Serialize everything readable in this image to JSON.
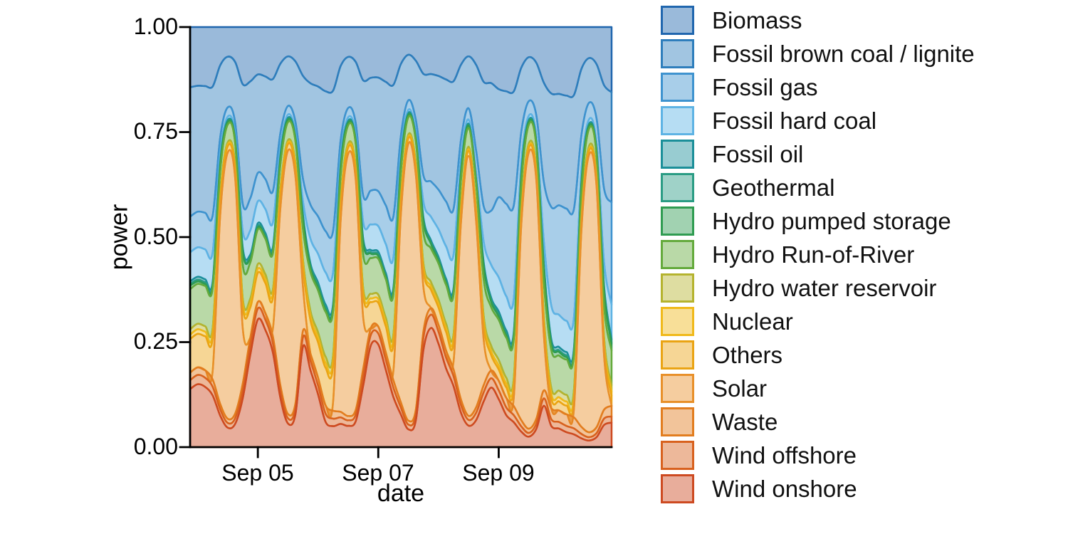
{
  "axes": {
    "y_title": "power",
    "x_title": "date",
    "y_ticks": [
      "1.00",
      "0.75",
      "0.50",
      "0.25",
      "0.00"
    ],
    "x_ticks": [
      "Sep 05",
      "Sep 07",
      "Sep 09"
    ]
  },
  "chart_data": {
    "type": "area",
    "stacked": true,
    "normalized": true,
    "title": "",
    "xlabel": "date",
    "ylabel": "power",
    "ylim": [
      0,
      1
    ],
    "grid": false,
    "legend_position": "right",
    "x_start": "Sep 03 21:00",
    "x_step_hours": 3,
    "x_range_hours": [
      0,
      168
    ],
    "x_tick_hours": [
      27,
      75,
      123
    ],
    "x_tick_labels": [
      "Sep 05",
      "Sep 07",
      "Sep 09"
    ],
    "y_tick_values": [
      1.0,
      0.75,
      0.5,
      0.25,
      0.0
    ],
    "y_tick_labels": [
      "1.00",
      "0.75",
      "0.50",
      "0.25",
      "0.00"
    ],
    "fill_alpha": 0.45,
    "series": [
      {
        "id": "biomass",
        "name": "Biomass",
        "color": "#2066ae",
        "values": [
          0.135,
          0.14,
          0.142,
          0.138,
          0.085,
          0.07,
          0.075,
          0.105,
          0.135,
          0.13,
          0.135,
          0.132,
          0.082,
          0.068,
          0.073,
          0.102,
          0.132,
          0.135,
          0.14,
          0.136,
          0.084,
          0.07,
          0.074,
          0.104,
          0.135,
          0.138,
          0.142,
          0.138,
          0.085,
          0.07,
          0.075,
          0.106,
          0.14,
          0.142,
          0.146,
          0.142,
          0.088,
          0.072,
          0.077,
          0.108,
          0.145,
          0.155,
          0.16,
          0.155,
          0.092,
          0.072,
          0.078,
          0.112,
          0.158,
          0.162,
          0.165,
          0.16,
          0.095,
          0.075,
          0.082,
          0.118,
          0.16
        ]
      },
      {
        "id": "fossil-brown-coal-lignite",
        "name": "Fossil brown coal / lignite",
        "color": "#2e7ebc",
        "values": [
          0.29,
          0.3,
          0.305,
          0.3,
          0.16,
          0.12,
          0.13,
          0.22,
          0.29,
          0.27,
          0.28,
          0.285,
          0.155,
          0.115,
          0.128,
          0.215,
          0.285,
          0.295,
          0.305,
          0.3,
          0.16,
          0.12,
          0.13,
          0.225,
          0.3,
          0.31,
          0.32,
          0.315,
          0.165,
          0.115,
          0.132,
          0.23,
          0.32,
          0.33,
          0.34,
          0.335,
          0.175,
          0.128,
          0.175,
          0.245,
          0.33,
          0.27,
          0.28,
          0.275,
          0.145,
          0.105,
          0.115,
          0.2,
          0.27,
          0.27,
          0.272,
          0.268,
          0.15,
          0.108,
          0.12,
          0.21,
          0.27
        ]
      },
      {
        "id": "fossil-gas",
        "name": "Fossil gas",
        "color": "#3e93cf",
        "values": [
          0.08,
          0.085,
          0.088,
          0.085,
          0.035,
          0.022,
          0.025,
          0.05,
          0.08,
          0.078,
          0.082,
          0.08,
          0.032,
          0.02,
          0.023,
          0.048,
          0.08,
          0.085,
          0.09,
          0.088,
          0.034,
          0.022,
          0.025,
          0.052,
          0.09,
          0.095,
          0.1,
          0.098,
          0.038,
          0.024,
          0.028,
          0.06,
          0.105,
          0.115,
          0.125,
          0.12,
          0.045,
          0.028,
          0.045,
          0.07,
          0.14,
          0.2,
          0.23,
          0.225,
          0.07,
          0.035,
          0.045,
          0.12,
          0.235,
          0.265,
          0.27,
          0.255,
          0.08,
          0.04,
          0.055,
          0.15,
          0.25
        ]
      },
      {
        "id": "fossil-hard-coal",
        "name": "Fossil hard coal",
        "color": "#5eb3e4",
        "values": [
          0.065,
          0.07,
          0.072,
          0.068,
          0.02,
          0.008,
          0.01,
          0.03,
          0.06,
          0.06,
          0.065,
          0.062,
          0.018,
          0.007,
          0.009,
          0.028,
          0.058,
          0.065,
          0.07,
          0.068,
          0.02,
          0.008,
          0.01,
          0.032,
          0.068,
          0.07,
          0.075,
          0.072,
          0.022,
          0.008,
          0.01,
          0.035,
          0.07,
          0.08,
          0.09,
          0.088,
          0.026,
          0.01,
          0.012,
          0.04,
          0.085,
          0.085,
          0.085,
          0.08,
          0.026,
          0.01,
          0.013,
          0.045,
          0.08,
          0.078,
          0.075,
          0.072,
          0.026,
          0.011,
          0.014,
          0.048,
          0.085
        ]
      },
      {
        "id": "fossil-oil",
        "name": "Fossil oil",
        "color": "#1b8f99",
        "values": [
          0.006,
          0.007,
          0.007,
          0.006,
          0.004,
          0.003,
          0.003,
          0.005,
          0.006,
          0.007,
          0.007,
          0.006,
          0.004,
          0.003,
          0.003,
          0.005,
          0.006,
          0.007,
          0.007,
          0.006,
          0.004,
          0.003,
          0.003,
          0.005,
          0.006,
          0.007,
          0.007,
          0.006,
          0.004,
          0.003,
          0.003,
          0.005,
          0.007,
          0.007,
          0.007,
          0.007,
          0.004,
          0.003,
          0.003,
          0.005,
          0.007,
          0.008,
          0.008,
          0.007,
          0.004,
          0.003,
          0.003,
          0.005,
          0.007,
          0.008,
          0.008,
          0.007,
          0.005,
          0.003,
          0.004,
          0.006,
          0.008
        ]
      },
      {
        "id": "geothermal",
        "name": "Geothermal",
        "color": "#2a9c84",
        "values": [
          0.0035,
          0.004,
          0.004,
          0.0035,
          0.002,
          0.0015,
          0.0016,
          0.0025,
          0.0035,
          0.004,
          0.004,
          0.0035,
          0.002,
          0.0015,
          0.0016,
          0.0025,
          0.0035,
          0.004,
          0.004,
          0.0035,
          0.002,
          0.0015,
          0.0016,
          0.0025,
          0.0035,
          0.004,
          0.004,
          0.0035,
          0.002,
          0.0015,
          0.0016,
          0.0025,
          0.0035,
          0.004,
          0.004,
          0.0035,
          0.002,
          0.0015,
          0.0016,
          0.0025,
          0.0035,
          0.004,
          0.004,
          0.0035,
          0.002,
          0.0015,
          0.0016,
          0.0025,
          0.0035,
          0.004,
          0.004,
          0.0035,
          0.002,
          0.0015,
          0.0016,
          0.0025,
          0.0035
        ]
      },
      {
        "id": "hydro-pumped-storage",
        "name": "Hydro pumped storage",
        "color": "#2f9c51",
        "values": [
          0.008,
          0.006,
          0.005,
          0.006,
          0.014,
          0.006,
          0.005,
          0.024,
          0.01,
          0.006,
          0.005,
          0.006,
          0.014,
          0.006,
          0.005,
          0.022,
          0.01,
          0.007,
          0.005,
          0.006,
          0.015,
          0.006,
          0.005,
          0.024,
          0.012,
          0.008,
          0.005,
          0.006,
          0.016,
          0.006,
          0.005,
          0.026,
          0.014,
          0.008,
          0.006,
          0.006,
          0.016,
          0.006,
          0.005,
          0.026,
          0.014,
          0.009,
          0.006,
          0.006,
          0.018,
          0.007,
          0.006,
          0.028,
          0.015,
          0.009,
          0.006,
          0.006,
          0.018,
          0.007,
          0.006,
          0.03,
          0.016
        ]
      },
      {
        "id": "hydro-run-of-river",
        "name": "Hydro Run-of-River",
        "color": "#64aa3c",
        "values": [
          0.09,
          0.095,
          0.097,
          0.092,
          0.055,
          0.042,
          0.046,
          0.062,
          0.09,
          0.095,
          0.097,
          0.092,
          0.055,
          0.042,
          0.046,
          0.064,
          0.092,
          0.095,
          0.098,
          0.094,
          0.056,
          0.043,
          0.047,
          0.065,
          0.095,
          0.098,
          0.1,
          0.096,
          0.058,
          0.044,
          0.048,
          0.07,
          0.1,
          0.105,
          0.108,
          0.104,
          0.062,
          0.046,
          0.05,
          0.072,
          0.1,
          0.1,
          0.1,
          0.095,
          0.06,
          0.045,
          0.05,
          0.07,
          0.09,
          0.085,
          0.085,
          0.082,
          0.055,
          0.042,
          0.046,
          0.065,
          0.085
        ]
      },
      {
        "id": "hydro-water-reservoir",
        "name": "Hydro water reservoir",
        "color": "#b5b32e",
        "values": [
          0.012,
          0.013,
          0.013,
          0.012,
          0.007,
          0.005,
          0.006,
          0.008,
          0.012,
          0.013,
          0.013,
          0.012,
          0.007,
          0.005,
          0.006,
          0.008,
          0.012,
          0.012,
          0.013,
          0.012,
          0.007,
          0.005,
          0.006,
          0.008,
          0.012,
          0.012,
          0.012,
          0.012,
          0.007,
          0.005,
          0.006,
          0.009,
          0.013,
          0.013,
          0.013,
          0.012,
          0.008,
          0.006,
          0.007,
          0.01,
          0.014,
          0.014,
          0.014,
          0.013,
          0.009,
          0.006,
          0.007,
          0.01,
          0.014,
          0.016,
          0.016,
          0.015,
          0.01,
          0.007,
          0.008,
          0.012,
          0.016
        ]
      },
      {
        "id": "nuclear",
        "name": "Nuclear",
        "color": "#f0b91a",
        "values": [
          0.01,
          0.011,
          0.011,
          0.01,
          0.006,
          0.004,
          0.005,
          0.007,
          0.01,
          0.011,
          0.011,
          0.01,
          0.006,
          0.004,
          0.005,
          0.007,
          0.01,
          0.011,
          0.011,
          0.01,
          0.006,
          0.004,
          0.005,
          0.007,
          0.01,
          0.01,
          0.01,
          0.01,
          0.006,
          0.004,
          0.005,
          0.007,
          0.01,
          0.01,
          0.01,
          0.01,
          0.006,
          0.004,
          0.005,
          0.007,
          0.01,
          0.01,
          0.01,
          0.009,
          0.006,
          0.004,
          0.005,
          0.007,
          0.01,
          0.01,
          0.01,
          0.009,
          0.006,
          0.004,
          0.005,
          0.007,
          0.01
        ]
      },
      {
        "id": "others",
        "name": "Others",
        "color": "#eaa414",
        "values": [
          0.075,
          0.08,
          0.082,
          0.078,
          0.03,
          0.015,
          0.018,
          0.04,
          0.075,
          0.08,
          0.082,
          0.078,
          0.03,
          0.015,
          0.018,
          0.042,
          0.078,
          0.08,
          0.082,
          0.078,
          0.03,
          0.015,
          0.018,
          0.042,
          0.07,
          0.065,
          0.068,
          0.065,
          0.028,
          0.014,
          0.016,
          0.038,
          0.055,
          0.05,
          0.052,
          0.05,
          0.024,
          0.013,
          0.015,
          0.03,
          0.04,
          0.028,
          0.026,
          0.025,
          0.016,
          0.011,
          0.012,
          0.02,
          0.024,
          0.022,
          0.021,
          0.021,
          0.014,
          0.01,
          0.011,
          0.018,
          0.025
        ]
      },
      {
        "id": "solar",
        "name": "Solar",
        "color": "#e8902a",
        "values": [
          0,
          0,
          0,
          0.02,
          0.42,
          0.63,
          0.5,
          0.1,
          0,
          0,
          0,
          0.02,
          0.4,
          0.61,
          0.48,
          0.09,
          0,
          0,
          0,
          0.02,
          0.41,
          0.615,
          0.49,
          0.1,
          0,
          0,
          0,
          0.02,
          0.43,
          0.7,
          0.52,
          0.1,
          0,
          0,
          0,
          0.02,
          0.42,
          0.64,
          0.38,
          0.09,
          0,
          0,
          0,
          0.02,
          0.44,
          0.66,
          0.52,
          0.11,
          0,
          0,
          0,
          0.02,
          0.45,
          0.67,
          0.53,
          0.11,
          0
        ]
      },
      {
        "id": "waste",
        "name": "Waste",
        "color": "#e27d1f",
        "values": [
          0.017,
          0.018,
          0.018,
          0.017,
          0.012,
          0.01,
          0.01,
          0.012,
          0.017,
          0.018,
          0.018,
          0.017,
          0.012,
          0.01,
          0.01,
          0.013,
          0.017,
          0.018,
          0.018,
          0.017,
          0.012,
          0.01,
          0.01,
          0.013,
          0.018,
          0.019,
          0.019,
          0.018,
          0.012,
          0.01,
          0.01,
          0.014,
          0.019,
          0.02,
          0.02,
          0.018,
          0.013,
          0.01,
          0.011,
          0.014,
          0.02,
          0.024,
          0.024,
          0.022,
          0.014,
          0.01,
          0.011,
          0.016,
          0.026,
          0.028,
          0.028,
          0.026,
          0.016,
          0.012,
          0.013,
          0.018,
          0.026
        ]
      },
      {
        "id": "wind-offshore",
        "name": "Wind offshore",
        "color": "#d8611e",
        "values": [
          0.02,
          0.022,
          0.022,
          0.02,
          0.014,
          0.011,
          0.012,
          0.015,
          0.025,
          0.03,
          0.028,
          0.024,
          0.016,
          0.012,
          0.013,
          0.02,
          0.022,
          0.02,
          0.018,
          0.016,
          0.014,
          0.013,
          0.014,
          0.02,
          0.028,
          0.03,
          0.026,
          0.022,
          0.016,
          0.012,
          0.014,
          0.028,
          0.04,
          0.035,
          0.03,
          0.026,
          0.018,
          0.014,
          0.015,
          0.018,
          0.024,
          0.022,
          0.019,
          0.017,
          0.012,
          0.009,
          0.011,
          0.015,
          0.016,
          0.016,
          0.015,
          0.014,
          0.01,
          0.008,
          0.009,
          0.013,
          0.015
        ]
      },
      {
        "id": "wind-onshore",
        "name": "Wind onshore",
        "color": "#cd4a21",
        "values": [
          0.13,
          0.15,
          0.145,
          0.12,
          0.07,
          0.046,
          0.05,
          0.09,
          0.23,
          0.35,
          0.32,
          0.24,
          0.11,
          0.055,
          0.07,
          0.21,
          0.18,
          0.12,
          0.055,
          0.045,
          0.05,
          0.05,
          0.055,
          0.12,
          0.27,
          0.28,
          0.2,
          0.12,
          0.075,
          0.045,
          0.06,
          0.22,
          0.355,
          0.3,
          0.22,
          0.16,
          0.08,
          0.053,
          0.055,
          0.09,
          0.154,
          0.12,
          0.08,
          0.06,
          0.035,
          0.025,
          0.04,
          0.083,
          0.05,
          0.045,
          0.036,
          0.03,
          0.02,
          0.016,
          0.022,
          0.045,
          0.06
        ]
      }
    ]
  }
}
